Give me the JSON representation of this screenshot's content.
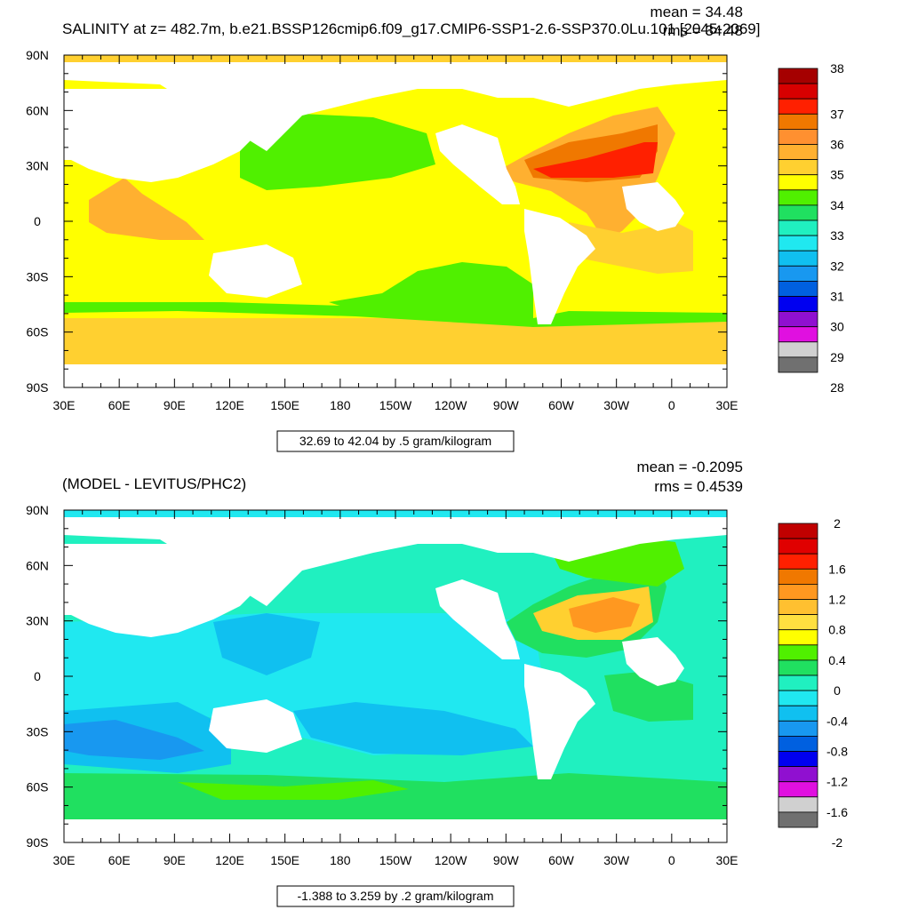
{
  "colors": {
    "land": "#ffffff",
    "axis": "#000000"
  },
  "top_panel": {
    "title": "SALINITY at z= 482.7m, b.e21.BSSP126cmip6.f09_g17.CMIP6-SSP1-2.6-SSP370.0Lu.101 [2045-2069]",
    "mean": "mean = 34.48",
    "rms": "rms = 34.48",
    "range_label": "32.69 to 42.04 by .5 gram/kilogram",
    "y_ticks": [
      "90N",
      "60N",
      "30N",
      "0",
      "30S",
      "60S",
      "90S"
    ],
    "x_ticks": [
      "30E",
      "60E",
      "90E",
      "120E",
      "150E",
      "180",
      "150W",
      "120W",
      "90W",
      "60W",
      "30W",
      "0",
      "30E"
    ],
    "colorbar_labels": [
      "38",
      "37",
      "36",
      "35",
      "34",
      "33",
      "32",
      "31",
      "30",
      "29",
      "28"
    ],
    "colorbar_colors": [
      "#a50000",
      "#d70000",
      "#ff2000",
      "#f07800",
      "#ff9030",
      "#ffb030",
      "#ffd030",
      "#ffff00",
      "#50f000",
      "#20e060",
      "#20f0c0",
      "#20e8f0",
      "#10c0f0",
      "#1898f0",
      "#0060e0",
      "#0000f0",
      "#9010d0",
      "#e010e0",
      "#d0d0d0",
      "#707070"
    ]
  },
  "bottom_panel": {
    "title": "(MODEL - LEVITUS/PHC2)",
    "mean": "mean = -0.2095",
    "rms": "rms = 0.4539",
    "range_label": "-1.388 to 3.259 by .2 gram/kilogram",
    "y_ticks": [
      "90N",
      "60N",
      "30N",
      "0",
      "30S",
      "60S",
      "90S"
    ],
    "x_ticks": [
      "30E",
      "60E",
      "90E",
      "120E",
      "150E",
      "180",
      "150W",
      "120W",
      "90W",
      "60W",
      "30W",
      "0",
      "30E"
    ],
    "colorbar_labels": [
      "2",
      "1.6",
      "1.2",
      "0.8",
      "0.4",
      "0",
      "-0.4",
      "-0.8",
      "-1.2",
      "-1.6",
      "-2"
    ],
    "colorbar_colors": [
      "#c00000",
      "#e00000",
      "#ff2000",
      "#f07800",
      "#ff9820",
      "#ffc030",
      "#ffe040",
      "#ffff00",
      "#50f000",
      "#20e060",
      "#20f0c0",
      "#20e8f0",
      "#10c0f0",
      "#1898f0",
      "#0060e0",
      "#0000f0",
      "#9010d0",
      "#e010e0",
      "#d0d0d0",
      "#707070"
    ]
  }
}
